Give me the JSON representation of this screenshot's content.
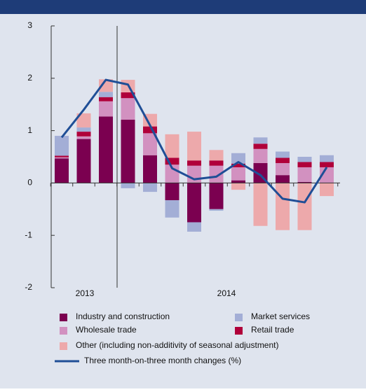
{
  "chart_data": {
    "type": "bar",
    "stacked": true,
    "categories": [
      null,
      null,
      null,
      null,
      null,
      null,
      null,
      null,
      null,
      null,
      null,
      null,
      null
    ],
    "group_labels": [
      "2013",
      "2014"
    ],
    "series": [
      {
        "name": "Industry and construction",
        "color": "#7b0050",
        "values": [
          0.47,
          0.84,
          1.27,
          1.21,
          0.53,
          -0.33,
          -0.75,
          -0.5,
          0.05,
          0.38,
          0.15,
          0.02,
          0
        ]
      },
      {
        "name": "Wholesale trade",
        "color": "#d291c0",
        "values": [
          0.02,
          0.05,
          0.29,
          0.41,
          0.42,
          0.35,
          0.33,
          0.33,
          0.25,
          0.27,
          0.23,
          0.28,
          0.3
        ]
      },
      {
        "name": "Retail trade",
        "color": "#b0003a",
        "values": [
          0.03,
          0.09,
          0.08,
          0.11,
          0.13,
          0.13,
          0.1,
          0.1,
          0.07,
          0.1,
          0.1,
          0.1,
          0.1
        ]
      },
      {
        "name": "Market services",
        "color": "#a3aed6",
        "values": [
          0.38,
          0.08,
          0.1,
          -0.1,
          -0.17,
          -0.33,
          -0.18,
          -0.03,
          0.2,
          0.12,
          0.12,
          0.1,
          0.13
        ]
      },
      {
        "name": "Other (including non-additivity of seasonal adjustment)",
        "color": "#eda9ab",
        "values": [
          0,
          0.27,
          0.24,
          0.24,
          0.24,
          0.45,
          0.55,
          0.2,
          -0.13,
          -0.82,
          -0.9,
          -0.9,
          -0.25
        ]
      },
      {
        "name": "Three month-on-three month changes (%)",
        "type": "line",
        "color": "#1f4e96",
        "values": [
          0.87,
          1.4,
          1.97,
          1.88,
          1.1,
          0.28,
          0.07,
          0.12,
          0.4,
          0.15,
          -0.3,
          -0.37,
          0.3
        ]
      }
    ],
    "ylim": [
      -2,
      3
    ],
    "yticks": [
      -2,
      -1,
      0,
      1,
      2,
      3
    ]
  }
}
